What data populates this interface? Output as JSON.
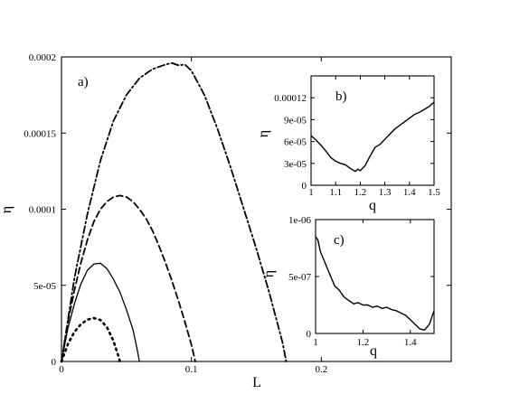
{
  "colors": {
    "background": "#ffffff",
    "ink": "#000000"
  },
  "chart_data": [
    {
      "panel": "main",
      "label": "a)",
      "type": "line",
      "xlabel": "L",
      "ylabel": "η",
      "xlim": [
        0,
        0.3
      ],
      "ylim": [
        0,
        0.0002
      ],
      "xticks": [
        0,
        0.1,
        0.2
      ],
      "xtick_labels": [
        "0",
        "0.1",
        "0.2"
      ],
      "yticks": [
        0,
        5e-05,
        0.0001,
        0.00015,
        0.0002
      ],
      "ytick_labels": [
        "0",
        "5e-05",
        "0.0001",
        "0.00015",
        "0.0002"
      ],
      "series": [
        {
          "style": "dotted",
          "points": [
            [
              0,
              0
            ],
            [
              0.005,
              1.15e-05
            ],
            [
              0.01,
              1.95e-05
            ],
            [
              0.015,
              2.45e-05
            ],
            [
              0.02,
              2.75e-05
            ],
            [
              0.025,
              2.85e-05
            ],
            [
              0.03,
              2.72e-05
            ],
            [
              0.035,
              2.25e-05
            ],
            [
              0.04,
              1.35e-05
            ],
            [
              0.044,
              3e-06
            ],
            [
              0.045,
              0
            ]
          ]
        },
        {
          "style": "solid",
          "points": [
            [
              0,
              0
            ],
            [
              0.005,
              2.2e-05
            ],
            [
              0.01,
              3.8e-05
            ],
            [
              0.015,
              5.1e-05
            ],
            [
              0.02,
              6e-05
            ],
            [
              0.025,
              6.4e-05
            ],
            [
              0.03,
              6.45e-05
            ],
            [
              0.035,
              6.1e-05
            ],
            [
              0.04,
              5.4e-05
            ],
            [
              0.045,
              4.55e-05
            ],
            [
              0.05,
              3.4e-05
            ],
            [
              0.055,
              2.1e-05
            ],
            [
              0.058,
              9e-06
            ],
            [
              0.06,
              0
            ]
          ]
        },
        {
          "style": "dashed",
          "points": [
            [
              0,
              0
            ],
            [
              0.005,
              2.6e-05
            ],
            [
              0.01,
              4.7e-05
            ],
            [
              0.015,
              6.5e-05
            ],
            [
              0.02,
              8e-05
            ],
            [
              0.025,
              9.2e-05
            ],
            [
              0.03,
              0.0001
            ],
            [
              0.035,
              0.000105
            ],
            [
              0.04,
              0.000108
            ],
            [
              0.045,
              0.000109
            ],
            [
              0.05,
              0.000108
            ],
            [
              0.055,
              0.000105
            ],
            [
              0.06,
              0.0001
            ],
            [
              0.065,
              9.4e-05
            ],
            [
              0.07,
              8.6e-05
            ],
            [
              0.075,
              7.6e-05
            ],
            [
              0.08,
              6.5e-05
            ],
            [
              0.085,
              5.3e-05
            ],
            [
              0.09,
              4e-05
            ],
            [
              0.095,
              2.6e-05
            ],
            [
              0.1,
              1.1e-05
            ],
            [
              0.103,
              0
            ]
          ]
        },
        {
          "style": "dash-dot",
          "points": [
            [
              0,
              0
            ],
            [
              0.01,
              5.5e-05
            ],
            [
              0.02,
              9.7e-05
            ],
            [
              0.03,
              0.000132
            ],
            [
              0.04,
              0.000158
            ],
            [
              0.05,
              0.000175
            ],
            [
              0.06,
              0.000186
            ],
            [
              0.07,
              0.000192
            ],
            [
              0.08,
              0.000195
            ],
            [
              0.085,
              0.000196
            ],
            [
              0.09,
              0.0001945
            ],
            [
              0.095,
              0.000195
            ],
            [
              0.1,
              0.000191
            ],
            [
              0.11,
              0.000175
            ],
            [
              0.12,
              0.000153
            ],
            [
              0.13,
              0.000128
            ],
            [
              0.14,
              0.000101
            ],
            [
              0.15,
              7.4e-05
            ],
            [
              0.16,
              4.5e-05
            ],
            [
              0.17,
              1.3e-05
            ],
            [
              0.173,
              0
            ]
          ]
        }
      ]
    },
    {
      "panel": "inset-b",
      "label": "b)",
      "type": "line",
      "xlabel": "q",
      "ylabel": "η",
      "xlim": [
        1,
        1.5
      ],
      "ylim": [
        0,
        0.00015
      ],
      "xticks": [
        1,
        1.1,
        1.2,
        1.3,
        1.4,
        1.5
      ],
      "xtick_labels": [
        "1",
        "1.1",
        "1.2",
        "1.3",
        "1.4",
        "1.5"
      ],
      "yticks": [
        0,
        3e-05,
        6e-05,
        9e-05,
        0.00012
      ],
      "ytick_labels": [
        "0",
        "3e-05",
        "6e-05",
        "9e-05",
        "0.00012"
      ],
      "series": [
        {
          "style": "solid",
          "points": [
            [
              1,
              6.8e-05
            ],
            [
              1.02,
              6.2e-05
            ],
            [
              1.04,
              5.5e-05
            ],
            [
              1.06,
              4.7e-05
            ],
            [
              1.08,
              3.8e-05
            ],
            [
              1.1,
              3.3e-05
            ],
            [
              1.12,
              3e-05
            ],
            [
              1.14,
              2.8e-05
            ],
            [
              1.16,
              2.3e-05
            ],
            [
              1.18,
              1.9e-05
            ],
            [
              1.19,
              2.2e-05
            ],
            [
              1.2,
              2e-05
            ],
            [
              1.22,
              2.7e-05
            ],
            [
              1.24,
              4e-05
            ],
            [
              1.26,
              5.2e-05
            ],
            [
              1.28,
              5.6e-05
            ],
            [
              1.3,
              6.3e-05
            ],
            [
              1.32,
              7e-05
            ],
            [
              1.34,
              7.7e-05
            ],
            [
              1.36,
              8.2e-05
            ],
            [
              1.38,
              8.7e-05
            ],
            [
              1.4,
              9.2e-05
            ],
            [
              1.42,
              9.7e-05
            ],
            [
              1.44,
              0.0001
            ],
            [
              1.46,
              0.000104
            ],
            [
              1.48,
              0.000108
            ],
            [
              1.5,
              0.000114
            ]
          ]
        }
      ]
    },
    {
      "panel": "inset-c",
      "label": "c)",
      "type": "line",
      "xlabel": "q",
      "ylabel": "η",
      "xlim": [
        1,
        1.5
      ],
      "ylim": [
        0,
        1e-06
      ],
      "xticks": [
        1,
        1.2,
        1.4
      ],
      "xtick_labels": [
        "1",
        "1.2",
        "1.4"
      ],
      "yticks": [
        0,
        5e-07,
        1e-06
      ],
      "ytick_labels": [
        "0",
        "5e-07",
        "1e-06"
      ],
      "series": [
        {
          "style": "solid",
          "points": [
            [
              1,
              8.5e-07
            ],
            [
              1.01,
              8.2e-07
            ],
            [
              1.02,
              7.2e-07
            ],
            [
              1.04,
              6.2e-07
            ],
            [
              1.06,
              5.2e-07
            ],
            [
              1.08,
              4.2e-07
            ],
            [
              1.1,
              3.8e-07
            ],
            [
              1.12,
              3.2e-07
            ],
            [
              1.14,
              2.9e-07
            ],
            [
              1.16,
              2.6e-07
            ],
            [
              1.18,
              2.7e-07
            ],
            [
              1.2,
              2.5e-07
            ],
            [
              1.22,
              2.5e-07
            ],
            [
              1.24,
              2.3e-07
            ],
            [
              1.26,
              2.4e-07
            ],
            [
              1.28,
              2.2e-07
            ],
            [
              1.3,
              2.3e-07
            ],
            [
              1.32,
              2.1e-07
            ],
            [
              1.34,
              2e-07
            ],
            [
              1.36,
              1.8e-07
            ],
            [
              1.38,
              1.6e-07
            ],
            [
              1.4,
              1.2e-07
            ],
            [
              1.42,
              8e-08
            ],
            [
              1.44,
              4e-08
            ],
            [
              1.46,
              3e-08
            ],
            [
              1.48,
              8e-08
            ],
            [
              1.5,
              2e-07
            ]
          ]
        }
      ]
    }
  ]
}
